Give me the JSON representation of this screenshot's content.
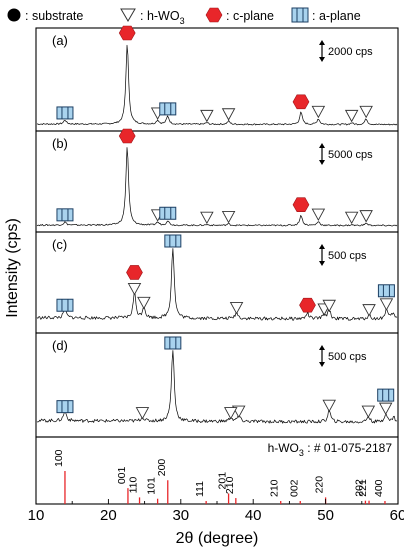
{
  "legend": {
    "substrate": ": substrate",
    "hwo3_prefix": ": h-WO",
    "hwo3_sub": "3",
    "c_plane": ": c-plane",
    "a_plane": ": a-plane"
  },
  "colors": {
    "c_plane_marker": "#e8262a",
    "a_plane_marker_fill": "#a9d3ee",
    "reference_lines": "#e8262a",
    "trace": "#111111"
  },
  "chart_data": {
    "type": "line",
    "xlabel": "2θ (degree)",
    "ylabel": "Intensity (cps)",
    "xlim": [
      10,
      60
    ],
    "x_ticks": [
      "10",
      "20",
      "30",
      "40",
      "50",
      "60"
    ],
    "panels": [
      {
        "label": "(a)",
        "scale_bar": "2000 cps",
        "peaks": [
          {
            "two_theta": 14.0,
            "rel_intensity": 0.05
          },
          {
            "two_theta": 22.6,
            "rel_intensity": 1.0
          },
          {
            "two_theta": 26.8,
            "rel_intensity": 0.05
          },
          {
            "two_theta": 28.2,
            "rel_intensity": 0.1
          },
          {
            "two_theta": 33.6,
            "rel_intensity": 0.02
          },
          {
            "two_theta": 36.6,
            "rel_intensity": 0.04
          },
          {
            "two_theta": 46.6,
            "rel_intensity": 0.15
          },
          {
            "two_theta": 49.0,
            "rel_intensity": 0.07
          },
          {
            "two_theta": 53.6,
            "rel_intensity": 0.02
          },
          {
            "two_theta": 55.6,
            "rel_intensity": 0.07
          }
        ],
        "markers": [
          {
            "type": "a-plane",
            "two_theta": 14.0
          },
          {
            "type": "c-plane",
            "two_theta": 22.6
          },
          {
            "type": "h-WO3",
            "two_theta": 26.8
          },
          {
            "type": "a-plane",
            "two_theta": 28.2
          },
          {
            "type": "h-WO3",
            "two_theta": 33.6
          },
          {
            "type": "h-WO3",
            "two_theta": 36.6
          },
          {
            "type": "c-plane",
            "two_theta": 46.6
          },
          {
            "type": "h-WO3",
            "two_theta": 49.0
          },
          {
            "type": "h-WO3",
            "two_theta": 53.6
          },
          {
            "type": "h-WO3",
            "two_theta": 55.6
          }
        ]
      },
      {
        "label": "(b)",
        "scale_bar": "5000 cps",
        "peaks": [
          {
            "two_theta": 14.0,
            "rel_intensity": 0.04
          },
          {
            "two_theta": 22.6,
            "rel_intensity": 1.0
          },
          {
            "two_theta": 26.8,
            "rel_intensity": 0.04
          },
          {
            "two_theta": 28.2,
            "rel_intensity": 0.06
          },
          {
            "two_theta": 33.6,
            "rel_intensity": 0.01
          },
          {
            "two_theta": 36.6,
            "rel_intensity": 0.02
          },
          {
            "two_theta": 46.6,
            "rel_intensity": 0.13
          },
          {
            "two_theta": 49.0,
            "rel_intensity": 0.05
          },
          {
            "two_theta": 53.6,
            "rel_intensity": 0.01
          },
          {
            "two_theta": 55.6,
            "rel_intensity": 0.03
          }
        ],
        "markers": [
          {
            "type": "a-plane",
            "two_theta": 14.0
          },
          {
            "type": "c-plane",
            "two_theta": 22.6
          },
          {
            "type": "h-WO3",
            "two_theta": 26.8
          },
          {
            "type": "a-plane",
            "two_theta": 28.2
          },
          {
            "type": "h-WO3",
            "two_theta": 33.6
          },
          {
            "type": "h-WO3",
            "two_theta": 36.6
          },
          {
            "type": "c-plane",
            "two_theta": 46.6
          },
          {
            "type": "h-WO3",
            "two_theta": 49.0
          },
          {
            "type": "h-WO3",
            "two_theta": 53.6
          },
          {
            "type": "h-WO3",
            "two_theta": 55.6
          }
        ]
      },
      {
        "label": "(c)",
        "scale_bar": "500 cps",
        "peaks": [
          {
            "two_theta": 14.0,
            "rel_intensity": 0.12
          },
          {
            "two_theta": 23.6,
            "rel_intensity": 0.35
          },
          {
            "two_theta": 24.9,
            "rel_intensity": 0.16
          },
          {
            "two_theta": 28.9,
            "rel_intensity": 1.0
          },
          {
            "two_theta": 37.7,
            "rel_intensity": 0.09
          },
          {
            "two_theta": 47.5,
            "rel_intensity": 0.08
          },
          {
            "two_theta": 49.8,
            "rel_intensity": 0.07
          },
          {
            "two_theta": 50.5,
            "rel_intensity": 0.12
          },
          {
            "two_theta": 56.0,
            "rel_intensity": 0.06
          },
          {
            "two_theta": 58.4,
            "rel_intensity": 0.14
          },
          {
            "two_theta": 59.3,
            "rel_intensity": 0.08
          }
        ],
        "markers": [
          {
            "type": "a-plane",
            "two_theta": 14.0
          },
          {
            "type": "c-plane",
            "two_theta": 23.6
          },
          {
            "type": "h-WO3",
            "two_theta": 23.6
          },
          {
            "type": "h-WO3",
            "two_theta": 24.9
          },
          {
            "type": "a-plane",
            "two_theta": 28.9
          },
          {
            "type": "h-WO3",
            "two_theta": 37.7
          },
          {
            "type": "c-plane",
            "two_theta": 47.5
          },
          {
            "type": "h-WO3",
            "two_theta": 49.8
          },
          {
            "type": "h-WO3",
            "two_theta": 50.5
          },
          {
            "type": "h-WO3",
            "two_theta": 56.0
          },
          {
            "type": "a-plane",
            "two_theta": 58.4
          },
          {
            "type": "h-WO3",
            "two_theta": 58.4
          }
        ]
      },
      {
        "label": "(d)",
        "scale_bar": "500 cps",
        "peaks": [
          {
            "two_theta": 14.0,
            "rel_intensity": 0.14
          },
          {
            "two_theta": 24.7,
            "rel_intensity": 0.06
          },
          {
            "two_theta": 28.9,
            "rel_intensity": 1.0
          },
          {
            "two_theta": 36.9,
            "rel_intensity": 0.06
          },
          {
            "two_theta": 38.0,
            "rel_intensity": 0.08
          },
          {
            "two_theta": 50.5,
            "rel_intensity": 0.16
          },
          {
            "two_theta": 55.9,
            "rel_intensity": 0.08
          },
          {
            "two_theta": 58.3,
            "rel_intensity": 0.12
          },
          {
            "two_theta": 59.4,
            "rel_intensity": 0.07
          }
        ],
        "markers": [
          {
            "type": "a-plane",
            "two_theta": 14.0
          },
          {
            "type": "h-WO3",
            "two_theta": 24.7
          },
          {
            "type": "a-plane",
            "two_theta": 28.9
          },
          {
            "type": "h-WO3",
            "two_theta": 36.9
          },
          {
            "type": "h-WO3",
            "two_theta": 38.0
          },
          {
            "type": "h-WO3",
            "two_theta": 50.5
          },
          {
            "type": "h-WO3",
            "two_theta": 55.9
          },
          {
            "type": "a-plane",
            "two_theta": 58.3
          },
          {
            "type": "h-WO3",
            "two_theta": 58.3
          }
        ]
      }
    ],
    "reference": {
      "title_prefix": "h-WO",
      "title_sub": "3",
      "title_suffix": " : # 01-075-2187",
      "lines": [
        {
          "hkl": "100",
          "two_theta": 14.0,
          "rel_intensity": 1.0
        },
        {
          "hkl": "001",
          "two_theta": 22.7,
          "rel_intensity": 0.48
        },
        {
          "hkl": "110",
          "two_theta": 24.3,
          "rel_intensity": 0.2
        },
        {
          "hkl": "101",
          "two_theta": 26.8,
          "rel_intensity": 0.16
        },
        {
          "hkl": "200",
          "two_theta": 28.2,
          "rel_intensity": 0.72
        },
        {
          "hkl": "111",
          "two_theta": 33.5,
          "rel_intensity": 0.05
        },
        {
          "hkl": "201",
          "two_theta": 36.6,
          "rel_intensity": 0.32
        },
        {
          "hkl": "210",
          "two_theta": 37.6,
          "rel_intensity": 0.18
        },
        {
          "hkl": "210",
          "two_theta": 43.8,
          "rel_intensity": 0.06
        },
        {
          "hkl": "002",
          "two_theta": 46.5,
          "rel_intensity": 0.06
        },
        {
          "hkl": "220",
          "two_theta": 50.0,
          "rel_intensity": 0.2
        },
        {
          "hkl": "202",
          "two_theta": 55.5,
          "rel_intensity": 0.1
        },
        {
          "hkl": "221",
          "two_theta": 56.0,
          "rel_intensity": 0.1
        },
        {
          "hkl": "400",
          "two_theta": 58.2,
          "rel_intensity": 0.08
        }
      ]
    }
  }
}
